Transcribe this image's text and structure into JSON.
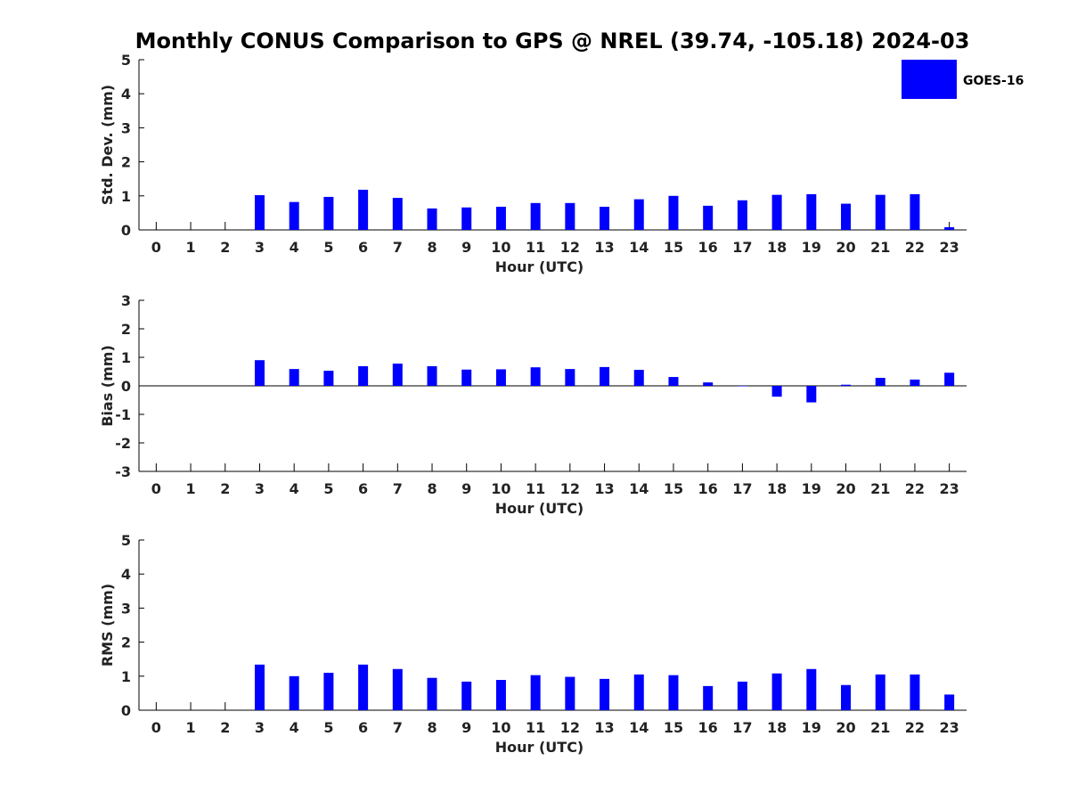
{
  "figure": {
    "title": "Monthly CONUS Comparison to GPS @ NREL (39.74, -105.18) 2024-03",
    "legend": {
      "entries": [
        "GOES-16"
      ],
      "placement": "top-right",
      "color": "#0000ff"
    }
  },
  "chart_data": [
    {
      "type": "bar",
      "title": "",
      "xlabel": "Hour (UTC)",
      "ylabel": "Std. Dev. (mm)",
      "ylim": [
        0,
        5
      ],
      "yticks": [
        0,
        1,
        2,
        3,
        4,
        5
      ],
      "xlim": [
        -0.5,
        23.5
      ],
      "categories": [
        "0",
        "1",
        "2",
        "3",
        "4",
        "5",
        "6",
        "7",
        "8",
        "9",
        "10",
        "11",
        "12",
        "13",
        "14",
        "15",
        "16",
        "17",
        "18",
        "19",
        "20",
        "21",
        "22",
        "23"
      ],
      "series": [
        {
          "name": "GOES-16",
          "color": "#0000ff",
          "values": [
            null,
            null,
            null,
            1.02,
            0.82,
            0.97,
            1.18,
            0.94,
            0.63,
            0.66,
            0.68,
            0.79,
            0.79,
            0.68,
            0.9,
            1.0,
            0.71,
            0.87,
            1.03,
            1.05,
            0.77,
            1.03,
            1.05,
            0.08
          ]
        }
      ],
      "grid": false
    },
    {
      "type": "bar",
      "title": "",
      "xlabel": "Hour (UTC)",
      "ylabel": "Bias (mm)",
      "ylim": [
        -3,
        3
      ],
      "yticks": [
        -3,
        -2,
        -1,
        0,
        1,
        2,
        3
      ],
      "xlim": [
        -0.5,
        23.5
      ],
      "categories": [
        "0",
        "1",
        "2",
        "3",
        "4",
        "5",
        "6",
        "7",
        "8",
        "9",
        "10",
        "11",
        "12",
        "13",
        "14",
        "15",
        "16",
        "17",
        "18",
        "19",
        "20",
        "21",
        "22",
        "23"
      ],
      "series": [
        {
          "name": "GOES-16",
          "color": "#0000ff",
          "values": [
            null,
            null,
            null,
            0.9,
            0.59,
            0.53,
            0.69,
            0.78,
            0.69,
            0.57,
            0.58,
            0.65,
            0.59,
            0.66,
            0.56,
            0.31,
            0.12,
            0.0,
            -0.38,
            -0.58,
            0.04,
            0.28,
            0.22,
            0.46
          ]
        }
      ],
      "grid": false
    },
    {
      "type": "bar",
      "title": "",
      "xlabel": "Hour (UTC)",
      "ylabel": "RMS (mm)",
      "ylim": [
        0,
        5
      ],
      "yticks": [
        0,
        1,
        2,
        3,
        4,
        5
      ],
      "xlim": [
        -0.5,
        23.5
      ],
      "categories": [
        "0",
        "1",
        "2",
        "3",
        "4",
        "5",
        "6",
        "7",
        "8",
        "9",
        "10",
        "11",
        "12",
        "13",
        "14",
        "15",
        "16",
        "17",
        "18",
        "19",
        "20",
        "21",
        "22",
        "23"
      ],
      "series": [
        {
          "name": "GOES-16",
          "color": "#0000ff",
          "values": [
            null,
            null,
            null,
            1.34,
            1.0,
            1.1,
            1.34,
            1.21,
            0.95,
            0.84,
            0.89,
            1.03,
            0.98,
            0.92,
            1.05,
            1.03,
            0.71,
            0.84,
            1.08,
            1.21,
            0.74,
            1.05,
            1.05,
            0.46
          ]
        }
      ],
      "grid": false
    }
  ]
}
